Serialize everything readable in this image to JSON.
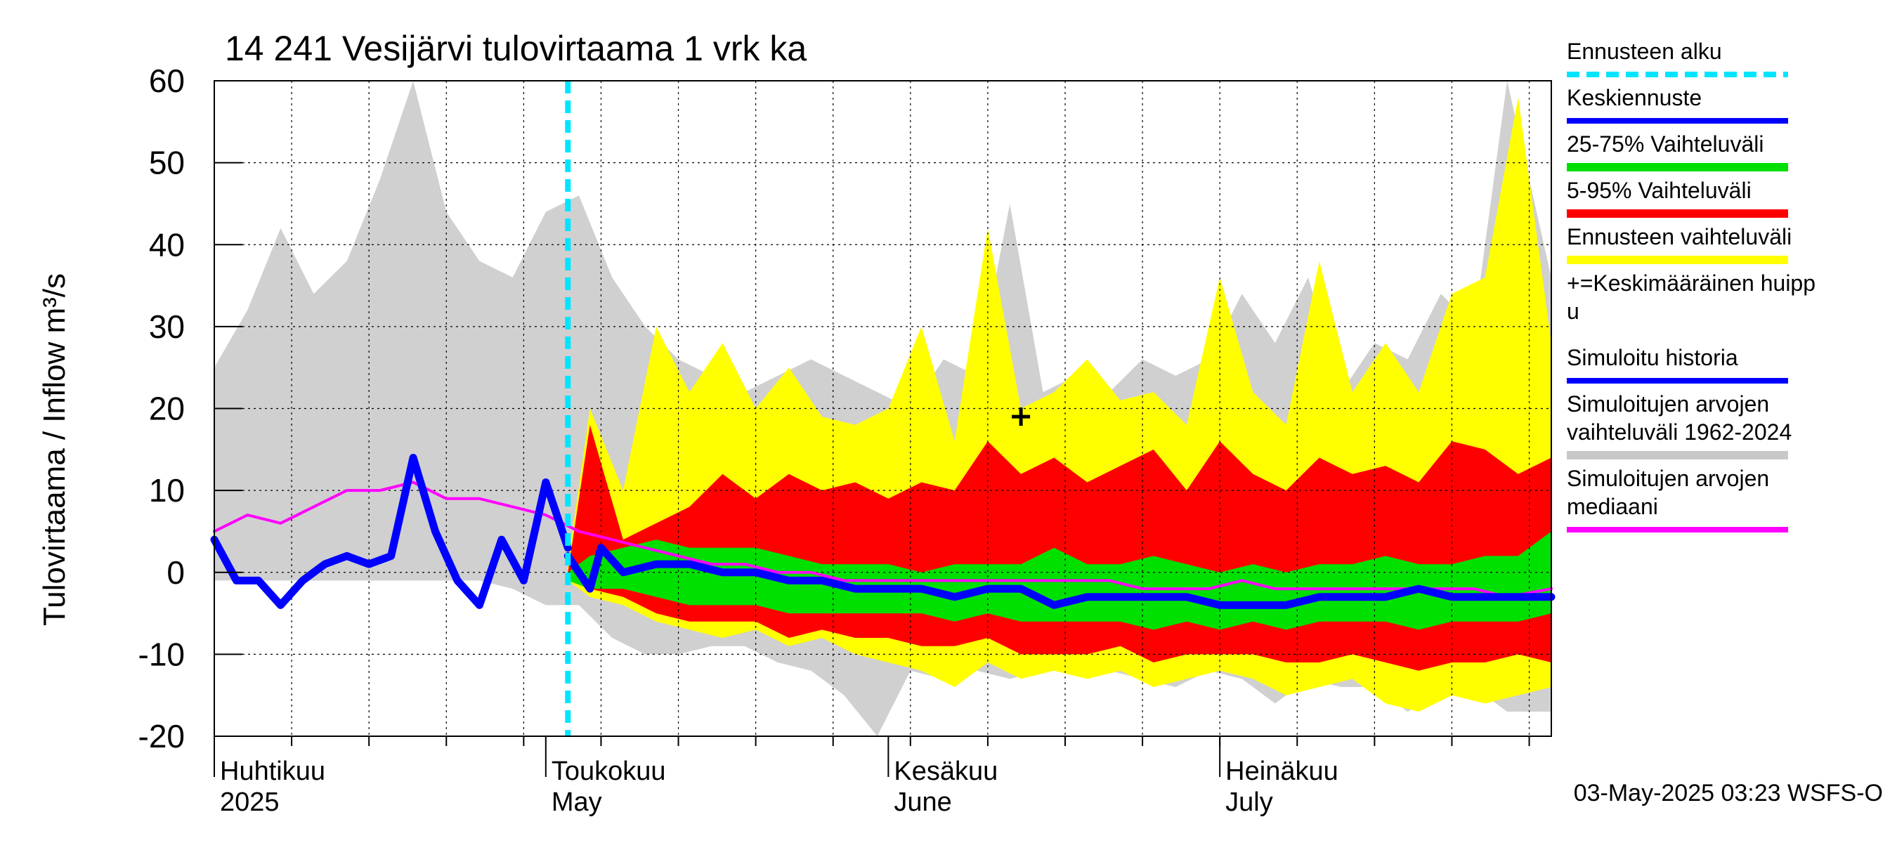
{
  "chart_data": {
    "type": "area",
    "title": "14 241 Vesijärvi tulovirtaama 1 vrk ka",
    "ylabel": "Tulovirtaama / Inflow    m³/s",
    "ylim": [
      -20,
      60
    ],
    "yticks": [
      -20,
      -10,
      0,
      10,
      20,
      30,
      40,
      50,
      60
    ],
    "ytick_labels": [
      "-20",
      "-10",
      "0",
      "10",
      "20",
      "30",
      "40",
      "50",
      "60"
    ],
    "x_range": [
      "2025-04-01",
      "2025-07-31"
    ],
    "x_month_labels": [
      {
        "date": "2025-04-01",
        "fi": "Huhtikuu",
        "en": "2025"
      },
      {
        "date": "2025-05-01",
        "fi": "Toukokuu",
        "en": "May"
      },
      {
        "date": "2025-06-01",
        "fi": "Kesäkuu",
        "en": "June"
      },
      {
        "date": "2025-07-01",
        "fi": "Heinäkuu",
        "en": "July"
      }
    ],
    "grid": true,
    "forecast_start": "2025-05-03",
    "mean_peak": {
      "date": "2025-06-13",
      "value": 19
    },
    "legend": [
      {
        "label": "Ennusteen alku",
        "color": "#00e5ff",
        "style": "dashed"
      },
      {
        "label": "Keskiennuste",
        "color": "#0000ff",
        "style": "line"
      },
      {
        "label": "25-75% Vaihteluväli",
        "color": "#00e000",
        "style": "band"
      },
      {
        "label": "5-95% Vaihteluväli",
        "color": "#ff0000",
        "style": "band"
      },
      {
        "label": "Ennusteen vaihteluväli",
        "color": "#ffff00",
        "style": "band"
      },
      {
        "label": "+=Keskimääräinen huipp",
        "label2": "u",
        "color": "#000000",
        "style": "marker"
      },
      {
        "label": "Simuloitu historia",
        "color": "#0000ff",
        "style": "line"
      },
      {
        "label": "Simuloitujen arvojen",
        "label2": "vaihteluväli 1962-2024",
        "color": "#c8c8c8",
        "style": "band"
      },
      {
        "label": "Simuloitujen arvojen",
        "label2": "mediaani",
        "color": "#ff00ff",
        "style": "line"
      }
    ],
    "series": [
      {
        "name": "Simuloitujen arvojen vaihteluväli 1962-2024",
        "color": "#d0d0d0",
        "kind": "band",
        "x": [
          "2025-04-01",
          "2025-04-04",
          "2025-04-07",
          "2025-04-10",
          "2025-04-13",
          "2025-04-16",
          "2025-04-19",
          "2025-04-22",
          "2025-04-25",
          "2025-04-28",
          "2025-05-01",
          "2025-05-04",
          "2025-05-07",
          "2025-05-10",
          "2025-05-13",
          "2025-05-16",
          "2025-05-19",
          "2025-05-22",
          "2025-05-25",
          "2025-05-28",
          "2025-05-31",
          "2025-06-03",
          "2025-06-06",
          "2025-06-09",
          "2025-06-12",
          "2025-06-15",
          "2025-06-18",
          "2025-06-21",
          "2025-06-24",
          "2025-06-27",
          "2025-06-30",
          "2025-07-03",
          "2025-07-06",
          "2025-07-09",
          "2025-07-12",
          "2025-07-15",
          "2025-07-18",
          "2025-07-21",
          "2025-07-24",
          "2025-07-27",
          "2025-07-31"
        ],
        "upper": [
          25,
          32,
          42,
          34,
          38,
          48,
          60,
          44,
          38,
          36,
          44,
          46,
          36,
          30,
          26,
          24,
          22,
          24,
          26,
          24,
          22,
          20,
          26,
          24,
          45,
          22,
          24,
          22,
          26,
          24,
          26,
          34,
          28,
          36,
          22,
          28,
          26,
          34,
          30,
          60,
          36
        ],
        "lower": [
          -1,
          -1,
          -1,
          -1,
          -1,
          -1,
          -1,
          -1,
          -1,
          -2,
          -4,
          -4,
          -8,
          -10,
          -10,
          -9,
          -9,
          -11,
          -12,
          -15,
          -20,
          -12,
          -13,
          -12,
          -13,
          -12,
          -12,
          -12,
          -13,
          -14,
          -12,
          -13,
          -16,
          -13,
          -14,
          -14,
          -17,
          -15,
          -14,
          -17,
          -17
        ]
      },
      {
        "name": "Ennusteen vaihteluväli",
        "color": "#ffff00",
        "kind": "band",
        "x": [
          "2025-05-03",
          "2025-05-05",
          "2025-05-08",
          "2025-05-11",
          "2025-05-14",
          "2025-05-17",
          "2025-05-20",
          "2025-05-23",
          "2025-05-26",
          "2025-05-29",
          "2025-06-01",
          "2025-06-04",
          "2025-06-07",
          "2025-06-10",
          "2025-06-13",
          "2025-06-16",
          "2025-06-19",
          "2025-06-22",
          "2025-06-25",
          "2025-06-28",
          "2025-07-01",
          "2025-07-04",
          "2025-07-07",
          "2025-07-10",
          "2025-07-13",
          "2025-07-16",
          "2025-07-19",
          "2025-07-22",
          "2025-07-25",
          "2025-07-28",
          "2025-07-31"
        ],
        "upper": [
          1,
          20,
          10,
          30,
          22,
          28,
          20,
          25,
          19,
          18,
          20,
          30,
          16,
          42,
          20,
          22,
          26,
          21,
          22,
          18,
          36,
          22,
          18,
          38,
          22,
          28,
          22,
          34,
          36,
          58,
          28
        ],
        "lower": [
          -1,
          -3,
          -4,
          -6,
          -7,
          -8,
          -7,
          -9,
          -8,
          -10,
          -11,
          -12,
          -14,
          -11,
          -13,
          -12,
          -13,
          -12,
          -14,
          -13,
          -12,
          -13,
          -15,
          -14,
          -13,
          -16,
          -17,
          -15,
          -16,
          -15,
          -14
        ]
      },
      {
        "name": "5-95% Vaihteluväli",
        "color": "#ff0000",
        "kind": "band",
        "x": [
          "2025-05-03",
          "2025-05-05",
          "2025-05-08",
          "2025-05-11",
          "2025-05-14",
          "2025-05-17",
          "2025-05-20",
          "2025-05-23",
          "2025-05-26",
          "2025-05-29",
          "2025-06-01",
          "2025-06-04",
          "2025-06-07",
          "2025-06-10",
          "2025-06-13",
          "2025-06-16",
          "2025-06-19",
          "2025-06-22",
          "2025-06-25",
          "2025-06-28",
          "2025-07-01",
          "2025-07-04",
          "2025-07-07",
          "2025-07-10",
          "2025-07-13",
          "2025-07-16",
          "2025-07-19",
          "2025-07-22",
          "2025-07-25",
          "2025-07-28",
          "2025-07-31"
        ],
        "upper": [
          0,
          18,
          4,
          6,
          8,
          12,
          9,
          12,
          10,
          11,
          9,
          11,
          10,
          16,
          12,
          14,
          11,
          13,
          15,
          10,
          16,
          12,
          10,
          14,
          12,
          13,
          11,
          16,
          15,
          12,
          14
        ],
        "lower": [
          -1,
          -2,
          -3,
          -5,
          -6,
          -6,
          -6,
          -8,
          -7,
          -8,
          -8,
          -9,
          -9,
          -8,
          -10,
          -10,
          -10,
          -9,
          -11,
          -10,
          -10,
          -10,
          -11,
          -11,
          -10,
          -11,
          -12,
          -11,
          -11,
          -10,
          -11
        ]
      },
      {
        "name": "25-75% Vaihteluväli",
        "color": "#00e000",
        "kind": "band",
        "x": [
          "2025-05-03",
          "2025-05-05",
          "2025-05-08",
          "2025-05-11",
          "2025-05-14",
          "2025-05-17",
          "2025-05-20",
          "2025-05-23",
          "2025-05-26",
          "2025-05-29",
          "2025-06-01",
          "2025-06-04",
          "2025-06-07",
          "2025-06-10",
          "2025-06-13",
          "2025-06-16",
          "2025-06-19",
          "2025-06-22",
          "2025-06-25",
          "2025-06-28",
          "2025-07-01",
          "2025-07-04",
          "2025-07-07",
          "2025-07-10",
          "2025-07-13",
          "2025-07-16",
          "2025-07-19",
          "2025-07-22",
          "2025-07-25",
          "2025-07-28",
          "2025-07-31"
        ],
        "upper": [
          0,
          2,
          3,
          4,
          3,
          3,
          3,
          2,
          1,
          1,
          1,
          0,
          1,
          1,
          1,
          3,
          1,
          1,
          2,
          1,
          0,
          1,
          0,
          1,
          1,
          2,
          1,
          1,
          2,
          2,
          5
        ],
        "lower": [
          -1,
          -2,
          -2,
          -3,
          -4,
          -4,
          -4,
          -5,
          -5,
          -5,
          -5,
          -5,
          -6,
          -5,
          -6,
          -6,
          -6,
          -6,
          -7,
          -6,
          -7,
          -6,
          -7,
          -6,
          -6,
          -6,
          -7,
          -6,
          -6,
          -6,
          -5
        ]
      },
      {
        "name": "Simuloitujen arvojen mediaani",
        "color": "#ff00ff",
        "kind": "line",
        "x": [
          "2025-04-01",
          "2025-04-04",
          "2025-04-07",
          "2025-04-10",
          "2025-04-13",
          "2025-04-16",
          "2025-04-19",
          "2025-04-22",
          "2025-04-25",
          "2025-04-28",
          "2025-05-01",
          "2025-05-04",
          "2025-05-07",
          "2025-05-10",
          "2025-05-13",
          "2025-05-16",
          "2025-05-19",
          "2025-05-22",
          "2025-05-25",
          "2025-05-28",
          "2025-05-31",
          "2025-06-03",
          "2025-06-06",
          "2025-06-09",
          "2025-06-12",
          "2025-06-15",
          "2025-06-18",
          "2025-06-21",
          "2025-06-24",
          "2025-06-27",
          "2025-06-30",
          "2025-07-03",
          "2025-07-06",
          "2025-07-09",
          "2025-07-12",
          "2025-07-15",
          "2025-07-18",
          "2025-07-21",
          "2025-07-24",
          "2025-07-27",
          "2025-07-31"
        ],
        "values": [
          5,
          7,
          6,
          8,
          10,
          10,
          11,
          9,
          9,
          8,
          7,
          5,
          4,
          3,
          2,
          1,
          1,
          0,
          0,
          -1,
          -1,
          -1,
          -1,
          -1,
          -1,
          -1,
          -1,
          -1,
          -2,
          -2,
          -2,
          -1,
          -2,
          -2,
          -2,
          -2,
          -2,
          -2,
          -2,
          -3,
          -2
        ]
      },
      {
        "name": "Simuloitu historia",
        "color": "#0000ff",
        "kind": "line",
        "x": [
          "2025-04-01",
          "2025-04-03",
          "2025-04-05",
          "2025-04-07",
          "2025-04-09",
          "2025-04-11",
          "2025-04-13",
          "2025-04-15",
          "2025-04-17",
          "2025-04-19",
          "2025-04-21",
          "2025-04-23",
          "2025-04-25",
          "2025-04-27",
          "2025-04-29",
          "2025-05-01",
          "2025-05-03"
        ],
        "values": [
          4,
          -1,
          -1,
          -4,
          -1,
          1,
          2,
          1,
          2,
          14,
          5,
          -1,
          -4,
          4,
          -1,
          11,
          3
        ]
      },
      {
        "name": "Keskiennuste",
        "color": "#0000ff",
        "kind": "line",
        "x": [
          "2025-05-03",
          "2025-05-05",
          "2025-05-06",
          "2025-05-08",
          "2025-05-11",
          "2025-05-14",
          "2025-05-17",
          "2025-05-20",
          "2025-05-23",
          "2025-05-26",
          "2025-05-29",
          "2025-06-01",
          "2025-06-04",
          "2025-06-07",
          "2025-06-10",
          "2025-06-13",
          "2025-06-16",
          "2025-06-19",
          "2025-06-22",
          "2025-06-25",
          "2025-06-28",
          "2025-07-01",
          "2025-07-04",
          "2025-07-07",
          "2025-07-10",
          "2025-07-13",
          "2025-07-16",
          "2025-07-19",
          "2025-07-22",
          "2025-07-25",
          "2025-07-28",
          "2025-07-31"
        ],
        "values": [
          2,
          -2,
          3,
          0,
          1,
          1,
          0,
          0,
          -1,
          -1,
          -2,
          -2,
          -2,
          -3,
          -2,
          -2,
          -4,
          -3,
          -3,
          -3,
          -3,
          -4,
          -4,
          -4,
          -3,
          -3,
          -3,
          -2,
          -3,
          -3,
          -3,
          -3
        ]
      }
    ]
  },
  "footer": "03-May-2025 03:23 WSFS-O"
}
